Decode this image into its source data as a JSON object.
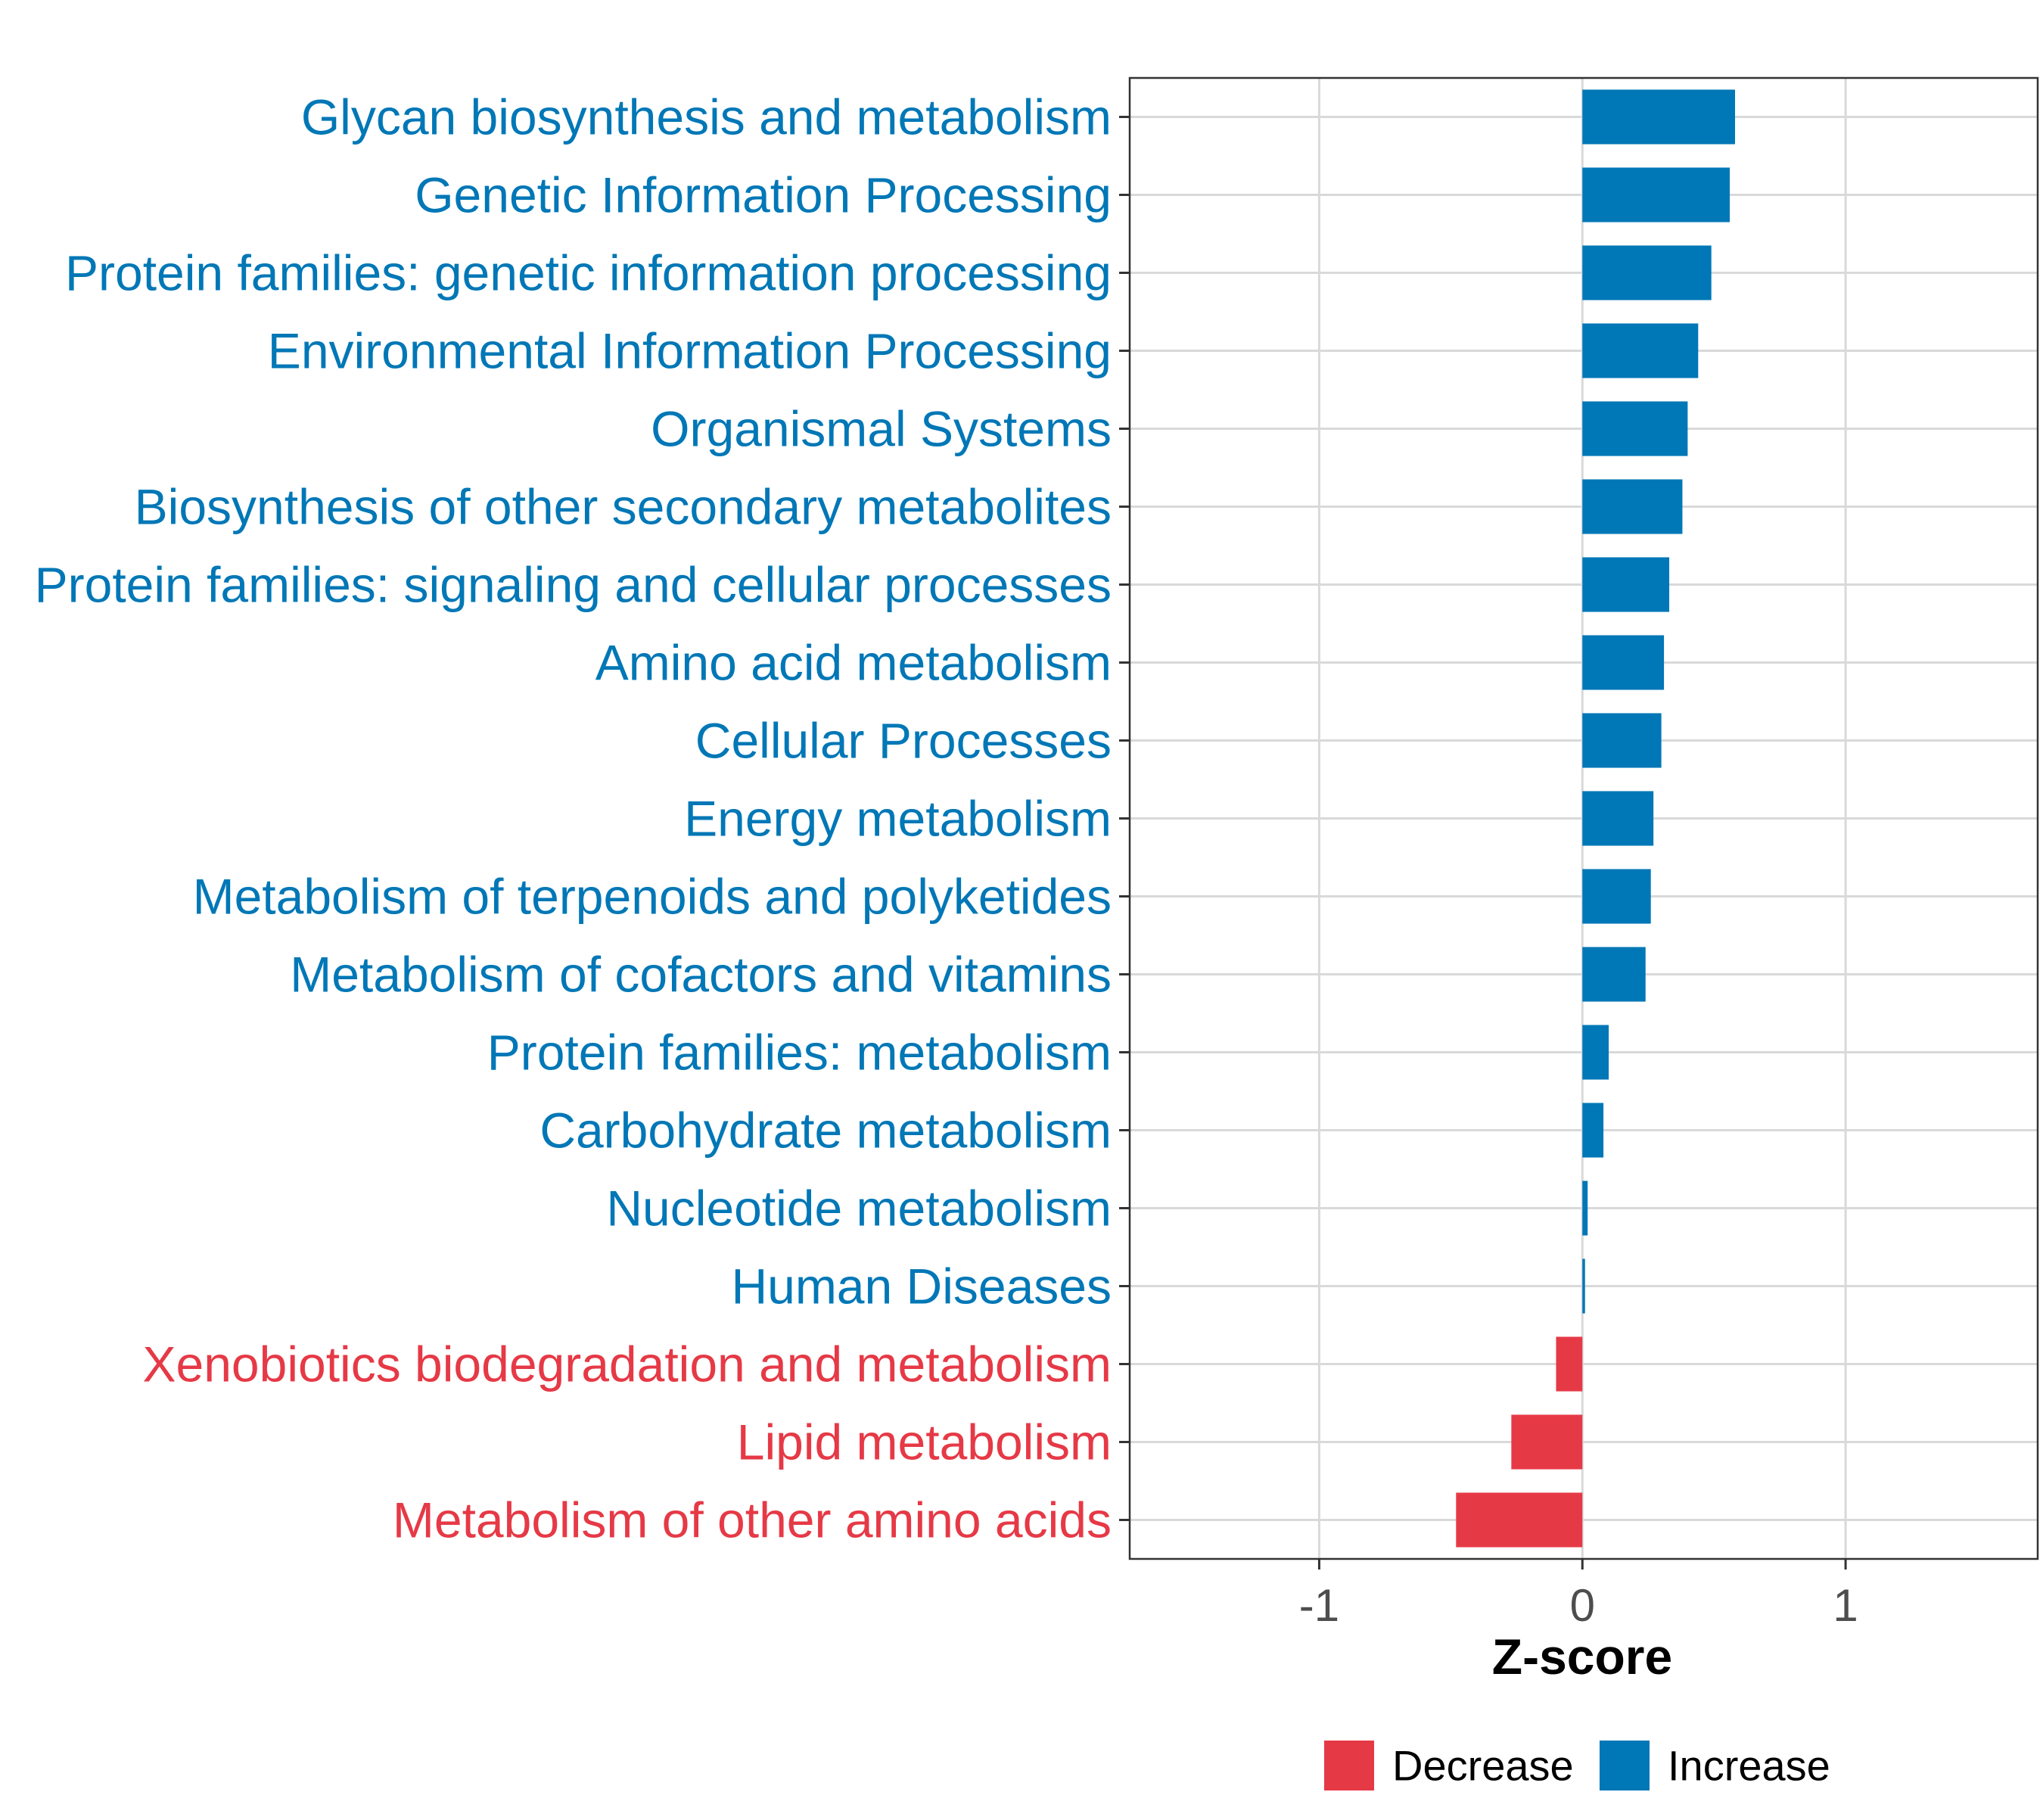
{
  "chart_data": {
    "type": "bar",
    "orientation": "horizontal",
    "title": "",
    "xlabel": "Z-score",
    "ylabel": "",
    "xlim": [
      -1.72,
      1.73
    ],
    "xticks": [
      -1,
      0,
      1
    ],
    "xtick_labels": [
      "-1",
      "0",
      "1"
    ],
    "grid": true,
    "legend_position": "bottom",
    "colors": {
      "Decrease": "#E63946",
      "Increase": "#0077B6",
      "grid": "#d9d9d9",
      "border": "#333333"
    },
    "legend": [
      {
        "label": "Decrease",
        "color_key": "Decrease"
      },
      {
        "label": "Increase",
        "color_key": "Increase"
      }
    ],
    "categories": [
      "Glycan biosynthesis and metabolism",
      "Genetic Information Processing",
      "Protein families: genetic information processing",
      "Environmental Information Processing",
      "Organismal Systems",
      "Biosynthesis of other secondary metabolites",
      "Protein families: signaling and cellular processes",
      "Amino acid metabolism",
      "Cellular Processes",
      "Energy metabolism",
      "Metabolism of terpenoids and polyketides",
      "Metabolism of cofactors and vitamins",
      "Protein families: metabolism",
      "Carbohydrate metabolism",
      "Nucleotide metabolism",
      "Human Diseases",
      "Xenobiotics biodegradation and metabolism",
      "Lipid metabolism",
      "Metabolism of other amino acids"
    ],
    "values": [
      0.58,
      0.56,
      0.49,
      0.44,
      0.4,
      0.38,
      0.33,
      0.31,
      0.3,
      0.27,
      0.26,
      0.24,
      0.1,
      0.08,
      0.02,
      0.01,
      -0.1,
      -0.27,
      -0.48
    ],
    "groups": [
      "Increase",
      "Increase",
      "Increase",
      "Increase",
      "Increase",
      "Increase",
      "Increase",
      "Increase",
      "Increase",
      "Increase",
      "Increase",
      "Increase",
      "Increase",
      "Increase",
      "Increase",
      "Increase",
      "Decrease",
      "Decrease",
      "Decrease"
    ]
  }
}
